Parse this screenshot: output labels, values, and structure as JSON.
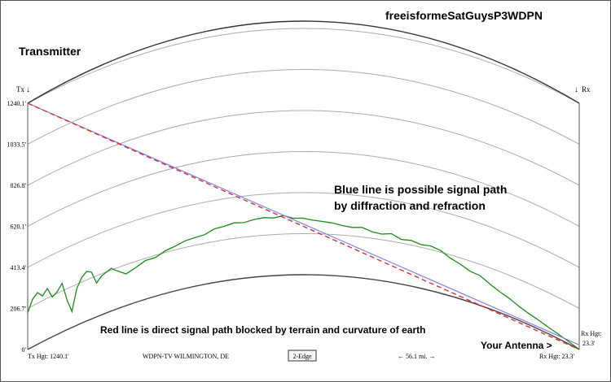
{
  "watermark": "freeisformeSatGuysP3WDPN",
  "chart_data": {
    "type": "line",
    "x_unit": "mi",
    "distance": 56.1,
    "tick_labels": [
      "1240.1'",
      "1033.5'",
      "826.8'",
      "620.1'",
      "413.4'",
      "206.7'",
      "0'"
    ],
    "tick_values": [
      1240.1,
      1033.5,
      826.8,
      620.1,
      413.4,
      206.7,
      0
    ],
    "ylim": [
      0,
      1240.1
    ],
    "series": [
      {
        "x": [
          0,
          0.5,
          1.0,
          1.5,
          2.0,
          2.5,
          3.0,
          3.5,
          4.0,
          4.5,
          5.0,
          5.5,
          6.0,
          6.5,
          7.0,
          7.5,
          8.0,
          8.5,
          9.0,
          10,
          11,
          12,
          13,
          14,
          15,
          16,
          17,
          18,
          19,
          20,
          21,
          22,
          23,
          24,
          25,
          26,
          27,
          28,
          29,
          30,
          31,
          32,
          33,
          34,
          35,
          36,
          37,
          38,
          39,
          40,
          41,
          42,
          43,
          44,
          45,
          46,
          47,
          48,
          49,
          50,
          51,
          52,
          53,
          54,
          55,
          56.1
        ],
        "values": [
          185,
          240,
          260,
          230,
          255,
          200,
          215,
          245,
          150,
          80,
          185,
          230,
          250,
          235,
          170,
          195,
          205,
          215,
          195,
          160,
          175,
          195,
          195,
          215,
          225,
          240,
          245,
          250,
          270,
          275,
          285,
          280,
          290,
          295,
          290,
          300,
          285,
          285,
          275,
          270,
          265,
          255,
          250,
          255,
          240,
          235,
          245,
          225,
          230,
          220,
          225,
          215,
          190,
          175,
          155,
          150,
          125,
          105,
          90,
          70,
          55,
          45,
          32,
          22,
          12,
          0
        ]
      }
    ],
    "lines": [
      {
        "style": "dashed",
        "color": "#d83030",
        "from": [
          0,
          1240.1
        ],
        "to": [
          56.1,
          0
        ]
      },
      {
        "style": "solid",
        "color": "#8080e8",
        "from": [
          0,
          1240.1
        ],
        "to": [
          56.1,
          23.3
        ]
      }
    ],
    "colors": {
      "terrain": "#1a8a1a",
      "direct": "#d83030",
      "diffraction": "#8080e8",
      "grid": "#aaaaaa"
    }
  },
  "labels": {
    "transmitter": "Transmitter",
    "tx": "Tx",
    "rx": "Rx",
    "rx_hgt": "Rx Hgt:",
    "rx_hgt_value": "23.3'",
    "blue_note_line1": "Blue line is possible signal path",
    "blue_note_line2": "by diffraction and refraction",
    "red_note": "Red line is direct signal path blocked by terrain and curvature of earth",
    "your_antenna": "Your Antenna >"
  },
  "footer": {
    "tx_hgt": "Tx Hgt: 1240.1'",
    "station": "WDPN-TV WILMINGTON, DE",
    "edge_button": "2-Edge",
    "distance": "← 56.1 mi. →",
    "rx_hgt": "Rx Hgt: 23.3'"
  }
}
